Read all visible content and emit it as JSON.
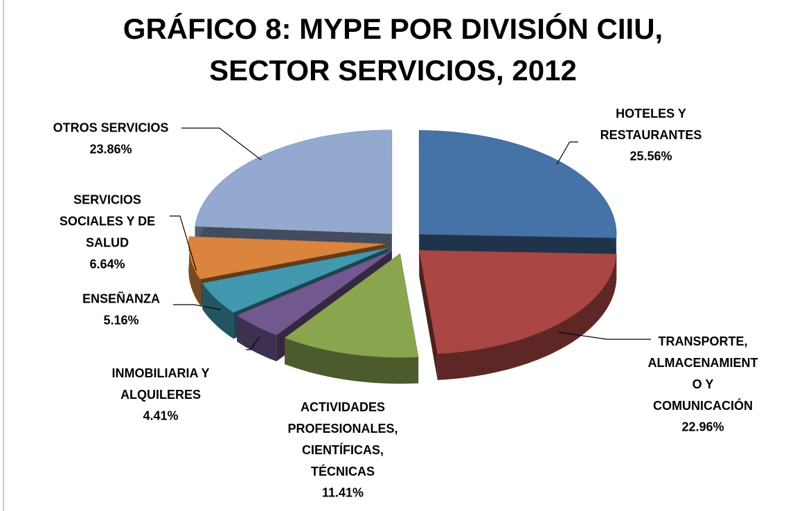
{
  "chart_data": {
    "type": "pie3d",
    "title": "GRÁFICO 8: MYPE POR DIVISIÓN  CIIU,\nSECTOR SERVICIOS, 2012",
    "categories": [
      "HOTELES  Y\nRESTAURANTES",
      "TRANSPORTE,\nALMACENAMIENT\nO Y\nCOMUNICACIÓN",
      "ACTIVIDADES\nPROFESIONALES,\nCIENTÍFICAS,\nTÉCNICAS",
      "INMOBILIARIA  Y\nALQUILERES",
      "ENSEÑANZA",
      "SERVICIOS\nSOCIALES Y DE\nSALUD",
      "OTROS SERVICIOS"
    ],
    "values": [
      25.56,
      22.96,
      11.41,
      4.41,
      5.16,
      6.64,
      23.86
    ],
    "value_labels": [
      "25.56%",
      "22.96%",
      "11.41%",
      "4.41%",
      "5.16%",
      "6.64%",
      "23.86%"
    ],
    "colors": [
      "#4572a7",
      "#aa4643",
      "#89a54e",
      "#71588f",
      "#4198af",
      "#db843d",
      "#93a9cf"
    ]
  }
}
